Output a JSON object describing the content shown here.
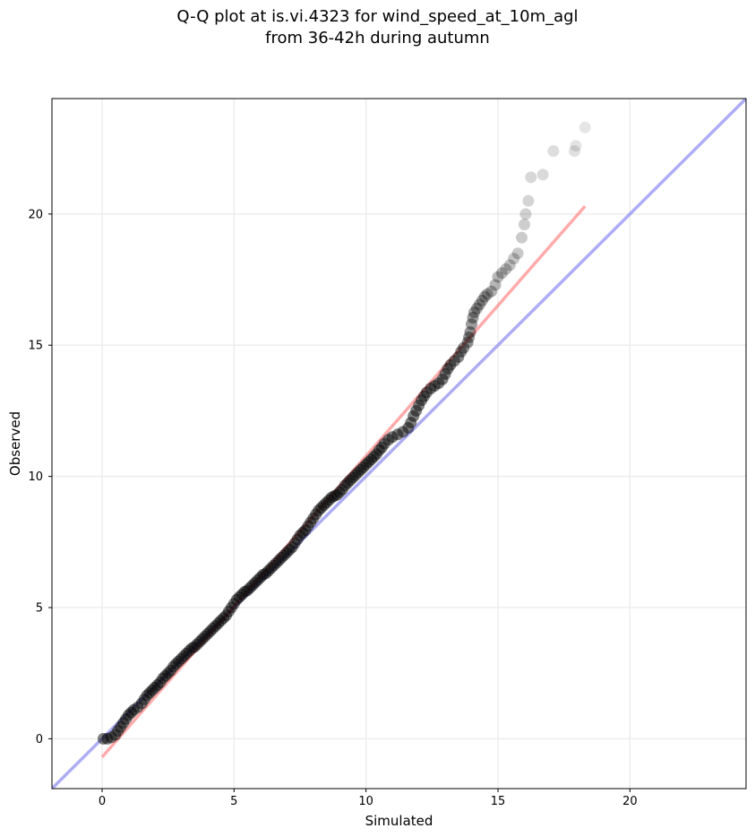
{
  "title_line1": "Q-Q plot at is.vi.4323 for wind_speed_at_10m_agl",
  "title_line2": "from 36-42h during autumn",
  "chart_data": {
    "type": "scatter",
    "xlabel": "Simulated",
    "ylabel": "Observed",
    "xlim": [
      -1.9,
      24.4
    ],
    "ylim": [
      -1.9,
      24.4
    ],
    "xticks": [
      0,
      5,
      10,
      15,
      20
    ],
    "yticks": [
      0,
      5,
      10,
      15,
      20
    ],
    "grid": true,
    "point_color": "#000000",
    "identity_line": {
      "color": "#7777ee",
      "from": [
        -1.9,
        -1.9
      ],
      "to": [
        24.4,
        24.4
      ]
    },
    "fit_line": {
      "color": "#ff6666",
      "from": [
        0.0,
        -0.7
      ],
      "to": [
        18.3,
        20.3
      ]
    },
    "points": [
      [
        0.05,
        0.0
      ],
      [
        0.2,
        0.0
      ],
      [
        0.35,
        0.05
      ],
      [
        0.5,
        0.15
      ],
      [
        0.6,
        0.3
      ],
      [
        0.7,
        0.45
      ],
      [
        0.8,
        0.6
      ],
      [
        0.9,
        0.75
      ],
      [
        1.0,
        0.9
      ],
      [
        1.1,
        1.0
      ],
      [
        1.2,
        1.1
      ],
      [
        1.35,
        1.2
      ],
      [
        1.5,
        1.35
      ],
      [
        1.6,
        1.5
      ],
      [
        1.7,
        1.65
      ],
      [
        1.8,
        1.75
      ],
      [
        1.9,
        1.85
      ],
      [
        2.0,
        1.95
      ],
      [
        2.1,
        2.05
      ],
      [
        2.2,
        2.15
      ],
      [
        2.3,
        2.3
      ],
      [
        2.4,
        2.4
      ],
      [
        2.5,
        2.5
      ],
      [
        2.6,
        2.6
      ],
      [
        2.7,
        2.75
      ],
      [
        2.8,
        2.85
      ],
      [
        2.9,
        2.95
      ],
      [
        3.0,
        3.05
      ],
      [
        3.1,
        3.15
      ],
      [
        3.2,
        3.25
      ],
      [
        3.3,
        3.35
      ],
      [
        3.4,
        3.45
      ],
      [
        3.5,
        3.5
      ],
      [
        3.6,
        3.6
      ],
      [
        3.7,
        3.7
      ],
      [
        3.8,
        3.8
      ],
      [
        3.9,
        3.9
      ],
      [
        4.0,
        4.0
      ],
      [
        4.1,
        4.1
      ],
      [
        4.2,
        4.2
      ],
      [
        4.3,
        4.3
      ],
      [
        4.4,
        4.4
      ],
      [
        4.5,
        4.5
      ],
      [
        4.6,
        4.6
      ],
      [
        4.7,
        4.7
      ],
      [
        4.8,
        4.85
      ],
      [
        4.9,
        5.0
      ],
      [
        5.0,
        5.15
      ],
      [
        5.1,
        5.3
      ],
      [
        5.2,
        5.4
      ],
      [
        5.3,
        5.5
      ],
      [
        5.4,
        5.6
      ],
      [
        5.5,
        5.65
      ],
      [
        5.6,
        5.75
      ],
      [
        5.7,
        5.85
      ],
      [
        5.8,
        5.95
      ],
      [
        5.9,
        6.05
      ],
      [
        6.0,
        6.15
      ],
      [
        6.1,
        6.25
      ],
      [
        6.2,
        6.3
      ],
      [
        6.3,
        6.4
      ],
      [
        6.4,
        6.5
      ],
      [
        6.5,
        6.6
      ],
      [
        6.6,
        6.7
      ],
      [
        6.7,
        6.8
      ],
      [
        6.8,
        6.9
      ],
      [
        6.9,
        7.0
      ],
      [
        7.0,
        7.1
      ],
      [
        7.1,
        7.2
      ],
      [
        7.2,
        7.3
      ],
      [
        7.3,
        7.45
      ],
      [
        7.4,
        7.6
      ],
      [
        7.5,
        7.75
      ],
      [
        7.6,
        7.85
      ],
      [
        7.7,
        7.95
      ],
      [
        7.8,
        8.1
      ],
      [
        7.9,
        8.25
      ],
      [
        8.0,
        8.4
      ],
      [
        8.1,
        8.55
      ],
      [
        8.2,
        8.7
      ],
      [
        8.3,
        8.8
      ],
      [
        8.4,
        8.9
      ],
      [
        8.5,
        9.0
      ],
      [
        8.6,
        9.1
      ],
      [
        8.7,
        9.2
      ],
      [
        8.8,
        9.25
      ],
      [
        8.9,
        9.3
      ],
      [
        9.0,
        9.4
      ],
      [
        9.1,
        9.5
      ],
      [
        9.2,
        9.65
      ],
      [
        9.3,
        9.75
      ],
      [
        9.4,
        9.85
      ],
      [
        9.5,
        9.95
      ],
      [
        9.6,
        10.05
      ],
      [
        9.7,
        10.15
      ],
      [
        9.8,
        10.25
      ],
      [
        9.9,
        10.35
      ],
      [
        10.0,
        10.45
      ],
      [
        10.1,
        10.55
      ],
      [
        10.2,
        10.65
      ],
      [
        10.3,
        10.75
      ],
      [
        10.4,
        10.85
      ],
      [
        10.5,
        11.0
      ],
      [
        10.6,
        11.1
      ],
      [
        10.7,
        11.25
      ],
      [
        10.85,
        11.4
      ],
      [
        11.0,
        11.5
      ],
      [
        11.2,
        11.6
      ],
      [
        11.4,
        11.7
      ],
      [
        11.6,
        11.85
      ],
      [
        11.7,
        12.05
      ],
      [
        11.8,
        12.3
      ],
      [
        11.9,
        12.5
      ],
      [
        12.0,
        12.7
      ],
      [
        12.1,
        12.9
      ],
      [
        12.2,
        13.05
      ],
      [
        12.3,
        13.2
      ],
      [
        12.45,
        13.35
      ],
      [
        12.6,
        13.45
      ],
      [
        12.75,
        13.55
      ],
      [
        12.9,
        13.7
      ],
      [
        13.0,
        13.9
      ],
      [
        13.1,
        14.1
      ],
      [
        13.2,
        14.25
      ],
      [
        13.35,
        14.4
      ],
      [
        13.5,
        14.55
      ],
      [
        13.6,
        14.75
      ],
      [
        13.7,
        14.9
      ],
      [
        13.85,
        15.1
      ],
      [
        13.9,
        15.3
      ],
      [
        13.95,
        15.5
      ],
      [
        14.0,
        15.8
      ],
      [
        14.05,
        16.05
      ],
      [
        14.1,
        16.25
      ],
      [
        14.2,
        16.4
      ],
      [
        14.3,
        16.55
      ],
      [
        14.4,
        16.7
      ],
      [
        14.5,
        16.85
      ],
      [
        14.6,
        16.95
      ],
      [
        14.75,
        17.05
      ],
      [
        14.9,
        17.3
      ],
      [
        15.0,
        17.6
      ],
      [
        15.15,
        17.75
      ],
      [
        15.3,
        17.9
      ],
      [
        15.45,
        18.05
      ],
      [
        15.6,
        18.3
      ],
      [
        15.75,
        18.5
      ],
      [
        15.9,
        19.1
      ],
      [
        16.0,
        19.6
      ],
      [
        16.05,
        20.0
      ],
      [
        16.15,
        20.5
      ],
      [
        16.25,
        21.4
      ],
      [
        16.7,
        21.5
      ],
      [
        17.1,
        22.4
      ],
      [
        17.9,
        22.4
      ],
      [
        17.95,
        22.6
      ],
      [
        18.3,
        23.3
      ]
    ]
  }
}
